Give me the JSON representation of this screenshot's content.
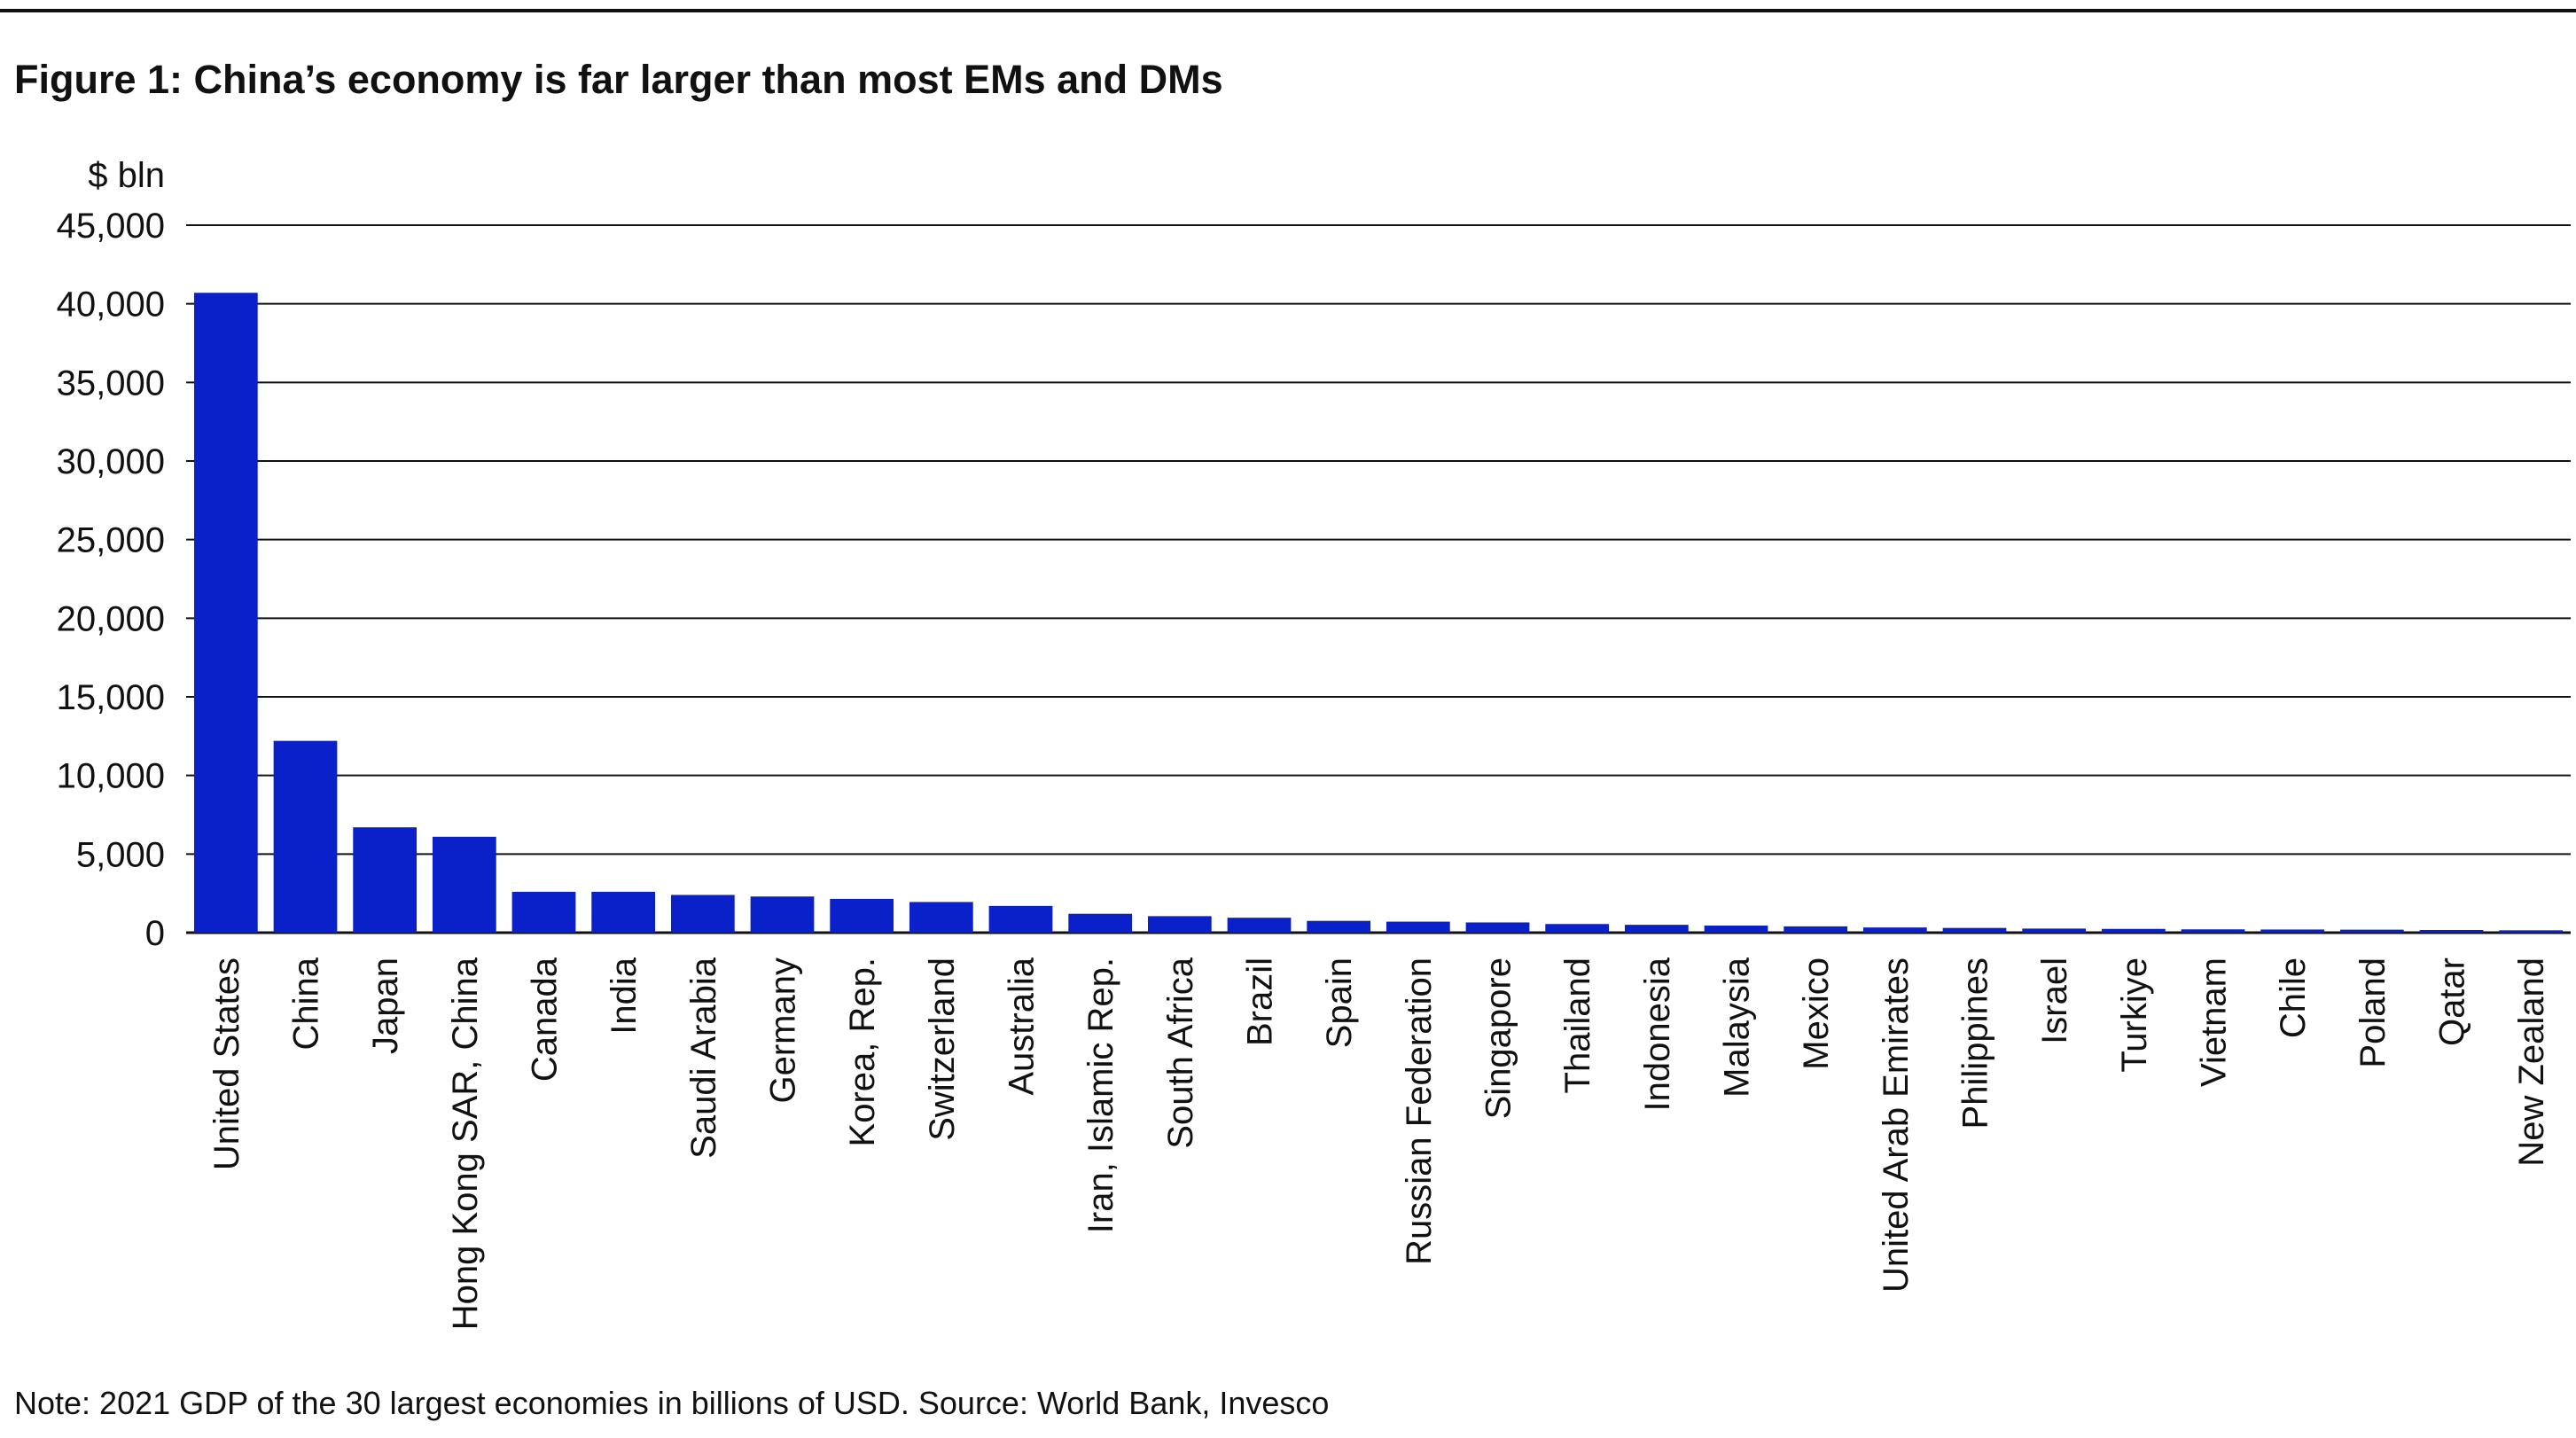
{
  "title": "Figure 1: China’s economy is far larger than most EMs and DMs",
  "note": "Note: 2021 GDP of the 30 largest economies in billions of USD. Source: World Bank, Invesco",
  "colors": {
    "bar": "#0a20c8",
    "grid": "#111111",
    "text": "#111111"
  },
  "chart_data": {
    "type": "bar",
    "title": "Figure 1: China’s economy is far larger than most EMs and DMs",
    "ylabel": "$ bln",
    "xlabel": "",
    "ylim": [
      0,
      45000
    ],
    "y_ticks": [
      0,
      5000,
      10000,
      15000,
      20000,
      25000,
      30000,
      35000,
      40000,
      45000
    ],
    "y_tick_labels": [
      "0",
      "5,000",
      "10,000",
      "15,000",
      "20,000",
      "25,000",
      "30,000",
      "35,000",
      "40,000",
      "45,000"
    ],
    "grid": true,
    "categories": [
      "United States",
      "China",
      "Japan",
      "Hong Kong SAR, China",
      "Canada",
      "India",
      "Saudi Arabia",
      "Germany",
      "Korea, Rep.",
      "Switzerland",
      "Australia",
      "Iran, Islamic Rep.",
      "South Africa",
      "Brazil",
      "Spain",
      "Russian Federation",
      "Singapore",
      "Thailand",
      "Indonesia",
      "Malaysia",
      "Mexico",
      "United Arab Emirates",
      "Philippines",
      "Israel",
      "Turkiye",
      "Vietnam",
      "Chile",
      "Poland",
      "Qatar",
      "New Zealand"
    ],
    "values": [
      40700,
      12200,
      6700,
      6100,
      2600,
      2600,
      2400,
      2300,
      2150,
      1950,
      1700,
      1200,
      1050,
      950,
      750,
      700,
      650,
      550,
      500,
      450,
      400,
      330,
      300,
      260,
      240,
      210,
      200,
      190,
      170,
      150
    ]
  }
}
